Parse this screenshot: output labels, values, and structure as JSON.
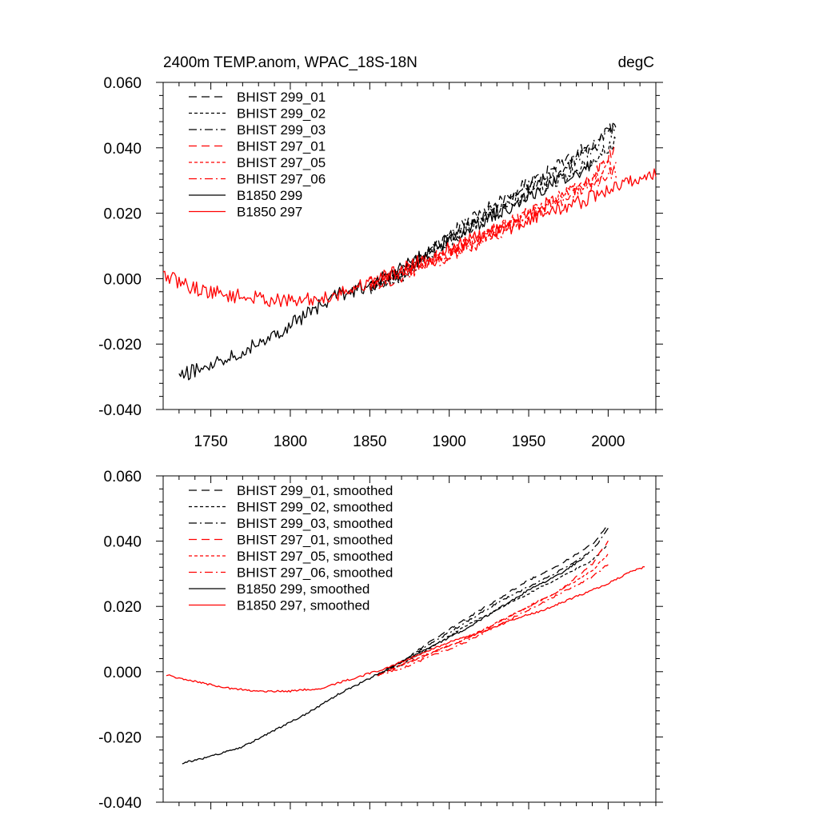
{
  "chart_data": [
    {
      "type": "line",
      "title": "2400m TEMP.anom, WPAC_18S-18N",
      "units": "degC",
      "xlim": [
        1720,
        2030
      ],
      "ylim": [
        -0.04,
        0.06
      ],
      "xticks": [
        1750,
        1800,
        1850,
        1900,
        1950,
        2000
      ],
      "xtick_labels": [
        "1750",
        "1800",
        "1850",
        "1900",
        "1950",
        "2000"
      ],
      "yticks": [
        -0.04,
        -0.02,
        0.0,
        0.02,
        0.04,
        0.06
      ],
      "ytick_labels": [
        "-0.040",
        "-0.020",
        "0.000",
        "0.020",
        "0.040",
        "0.060"
      ],
      "legend_position": "top-left",
      "grid": false,
      "series": [
        {
          "name": "BHIST 299_01",
          "color": "#000000",
          "dash": "long-dash",
          "noise": 0.0022,
          "points": [
            [
              1850,
              -0.003
            ],
            [
              1870,
              0.002
            ],
            [
              1890,
              0.009
            ],
            [
              1910,
              0.017
            ],
            [
              1930,
              0.023
            ],
            [
              1950,
              0.029
            ],
            [
              1970,
              0.035
            ],
            [
              1990,
              0.041
            ],
            [
              2005,
              0.048
            ]
          ]
        },
        {
          "name": "BHIST 299_02",
          "color": "#000000",
          "dash": "short-dash",
          "noise": 0.0022,
          "points": [
            [
              1850,
              -0.002
            ],
            [
              1870,
              0.001
            ],
            [
              1890,
              0.008
            ],
            [
              1910,
              0.015
            ],
            [
              1930,
              0.02
            ],
            [
              1950,
              0.026
            ],
            [
              1970,
              0.031
            ],
            [
              1990,
              0.036
            ],
            [
              2005,
              0.042
            ]
          ]
        },
        {
          "name": "BHIST 299_03",
          "color": "#000000",
          "dash": "dash-dot",
          "noise": 0.0022,
          "points": [
            [
              1850,
              -0.003
            ],
            [
              1870,
              0.002
            ],
            [
              1890,
              0.008
            ],
            [
              1910,
              0.016
            ],
            [
              1930,
              0.022
            ],
            [
              1950,
              0.028
            ],
            [
              1970,
              0.033
            ],
            [
              1990,
              0.04
            ],
            [
              2005,
              0.046
            ]
          ]
        },
        {
          "name": "BHIST 297_01",
          "color": "#ff0000",
          "dash": "long-dash",
          "noise": 0.0022,
          "points": [
            [
              1850,
              -0.002
            ],
            [
              1870,
              0.002
            ],
            [
              1890,
              0.006
            ],
            [
              1910,
              0.01
            ],
            [
              1930,
              0.015
            ],
            [
              1950,
              0.02
            ],
            [
              1970,
              0.025
            ],
            [
              1990,
              0.031
            ],
            [
              2005,
              0.04
            ]
          ]
        },
        {
          "name": "BHIST 297_05",
          "color": "#ff0000",
          "dash": "short-dash",
          "noise": 0.0022,
          "points": [
            [
              1850,
              -0.001
            ],
            [
              1870,
              0.002
            ],
            [
              1890,
              0.006
            ],
            [
              1910,
              0.01
            ],
            [
              1930,
              0.015
            ],
            [
              1950,
              0.02
            ],
            [
              1970,
              0.025
            ],
            [
              1990,
              0.03
            ],
            [
              2005,
              0.036
            ]
          ]
        },
        {
          "name": "BHIST 297_06",
          "color": "#ff0000",
          "dash": "dash-dot",
          "noise": 0.0022,
          "points": [
            [
              1850,
              -0.002
            ],
            [
              1870,
              0.001
            ],
            [
              1890,
              0.005
            ],
            [
              1910,
              0.009
            ],
            [
              1930,
              0.014
            ],
            [
              1950,
              0.019
            ],
            [
              1970,
              0.024
            ],
            [
              1990,
              0.029
            ],
            [
              2005,
              0.033
            ]
          ]
        },
        {
          "name": "B1850 299",
          "color": "#000000",
          "dash": "solid",
          "noise": 0.0022,
          "points": [
            [
              1730,
              -0.03
            ],
            [
              1750,
              -0.026
            ],
            [
              1770,
              -0.022
            ],
            [
              1790,
              -0.017
            ],
            [
              1810,
              -0.011
            ],
            [
              1830,
              -0.005
            ],
            [
              1850,
              -0.002
            ],
            [
              1870,
              0.003
            ],
            [
              1890,
              0.009
            ],
            [
              1910,
              0.015
            ],
            [
              1930,
              0.02
            ],
            [
              1950,
              0.025
            ],
            [
              1970,
              0.03
            ],
            [
              1990,
              0.035
            ]
          ]
        },
        {
          "name": "B1850 297",
          "color": "#ff0000",
          "dash": "solid",
          "noise": 0.0022,
          "points": [
            [
              1720,
              0.001
            ],
            [
              1740,
              -0.003
            ],
            [
              1760,
              -0.005
            ],
            [
              1780,
              -0.006
            ],
            [
              1800,
              -0.007
            ],
            [
              1820,
              -0.006
            ],
            [
              1840,
              -0.003
            ],
            [
              1860,
              0.001
            ],
            [
              1880,
              0.005
            ],
            [
              1900,
              0.009
            ],
            [
              1920,
              0.013
            ],
            [
              1940,
              0.016
            ],
            [
              1960,
              0.02
            ],
            [
              1980,
              0.023
            ],
            [
              2000,
              0.027
            ],
            [
              2015,
              0.03
            ],
            [
              2030,
              0.032
            ]
          ]
        }
      ]
    },
    {
      "type": "line",
      "xlim": [
        1720,
        2030
      ],
      "ylim": [
        -0.04,
        0.06
      ],
      "xticks": [
        1750,
        1800,
        1850,
        1900,
        1950,
        2000
      ],
      "yticks": [
        -0.04,
        -0.02,
        0.0,
        0.02,
        0.04,
        0.06
      ],
      "ytick_labels": [
        "-0.040",
        "-0.020",
        "0.000",
        "0.020",
        "0.040",
        "0.060"
      ],
      "legend_position": "top-left",
      "grid": false,
      "series": [
        {
          "name": "BHIST 299_01, smoothed",
          "color": "#000000",
          "dash": "long-dash",
          "noise": 0.0003,
          "points": [
            [
              1855,
              -0.001
            ],
            [
              1870,
              0.003
            ],
            [
              1890,
              0.01
            ],
            [
              1910,
              0.016
            ],
            [
              1930,
              0.022
            ],
            [
              1950,
              0.028
            ],
            [
              1970,
              0.033
            ],
            [
              1990,
              0.039
            ],
            [
              2000,
              0.045
            ]
          ]
        },
        {
          "name": "BHIST 299_02, smoothed",
          "color": "#000000",
          "dash": "short-dash",
          "noise": 0.0003,
          "points": [
            [
              1855,
              -0.001
            ],
            [
              1870,
              0.002
            ],
            [
              1890,
              0.008
            ],
            [
              1910,
              0.014
            ],
            [
              1930,
              0.019
            ],
            [
              1950,
              0.024
            ],
            [
              1970,
              0.029
            ],
            [
              1990,
              0.034
            ],
            [
              2000,
              0.039
            ]
          ]
        },
        {
          "name": "BHIST 299_03, smoothed",
          "color": "#000000",
          "dash": "dash-dot",
          "noise": 0.0003,
          "points": [
            [
              1855,
              -0.001
            ],
            [
              1870,
              0.003
            ],
            [
              1890,
              0.009
            ],
            [
              1910,
              0.015
            ],
            [
              1930,
              0.021
            ],
            [
              1950,
              0.026
            ],
            [
              1970,
              0.031
            ],
            [
              1990,
              0.037
            ],
            [
              2000,
              0.044
            ]
          ]
        },
        {
          "name": "BHIST 297_01, smoothed",
          "color": "#ff0000",
          "dash": "long-dash",
          "noise": 0.0003,
          "points": [
            [
              1855,
              -0.001
            ],
            [
              1870,
              0.002
            ],
            [
              1890,
              0.006
            ],
            [
              1910,
              0.01
            ],
            [
              1930,
              0.015
            ],
            [
              1950,
              0.02
            ],
            [
              1970,
              0.025
            ],
            [
              1990,
              0.033
            ],
            [
              2000,
              0.04
            ]
          ]
        },
        {
          "name": "BHIST 297_05, smoothed",
          "color": "#ff0000",
          "dash": "short-dash",
          "noise": 0.0003,
          "points": [
            [
              1855,
              -0.001
            ],
            [
              1870,
              0.002
            ],
            [
              1890,
              0.006
            ],
            [
              1910,
              0.01
            ],
            [
              1930,
              0.015
            ],
            [
              1950,
              0.02
            ],
            [
              1970,
              0.025
            ],
            [
              1990,
              0.031
            ],
            [
              2000,
              0.036
            ]
          ]
        },
        {
          "name": "BHIST 297_06, smoothed",
          "color": "#ff0000",
          "dash": "dash-dot",
          "noise": 0.0003,
          "points": [
            [
              1855,
              -0.001
            ],
            [
              1870,
              0.001
            ],
            [
              1890,
              0.005
            ],
            [
              1910,
              0.009
            ],
            [
              1930,
              0.014
            ],
            [
              1950,
              0.019
            ],
            [
              1970,
              0.024
            ],
            [
              1990,
              0.029
            ],
            [
              2000,
              0.033
            ]
          ]
        },
        {
          "name": "B1850 299, smoothed",
          "color": "#000000",
          "dash": "solid",
          "noise": 0.0003,
          "points": [
            [
              1732,
              -0.028
            ],
            [
              1750,
              -0.026
            ],
            [
              1770,
              -0.023
            ],
            [
              1790,
              -0.018
            ],
            [
              1810,
              -0.013
            ],
            [
              1830,
              -0.007
            ],
            [
              1850,
              -0.002
            ],
            [
              1870,
              0.003
            ],
            [
              1890,
              0.008
            ],
            [
              1910,
              0.013
            ],
            [
              1930,
              0.019
            ],
            [
              1950,
              0.025
            ],
            [
              1970,
              0.03
            ],
            [
              1985,
              0.035
            ]
          ]
        },
        {
          "name": "B1850 297, smoothed",
          "color": "#ff0000",
          "dash": "solid",
          "noise": 0.0003,
          "points": [
            [
              1722,
              -0.001
            ],
            [
              1740,
              -0.003
            ],
            [
              1760,
              -0.005
            ],
            [
              1780,
              -0.006
            ],
            [
              1800,
              -0.006
            ],
            [
              1820,
              -0.005
            ],
            [
              1840,
              -0.002
            ],
            [
              1860,
              0.001
            ],
            [
              1880,
              0.005
            ],
            [
              1900,
              0.009
            ],
            [
              1920,
              0.012
            ],
            [
              1940,
              0.016
            ],
            [
              1960,
              0.019
            ],
            [
              1980,
              0.023
            ],
            [
              2000,
              0.027
            ],
            [
              2015,
              0.031
            ],
            [
              2023,
              0.032
            ]
          ]
        }
      ]
    }
  ]
}
